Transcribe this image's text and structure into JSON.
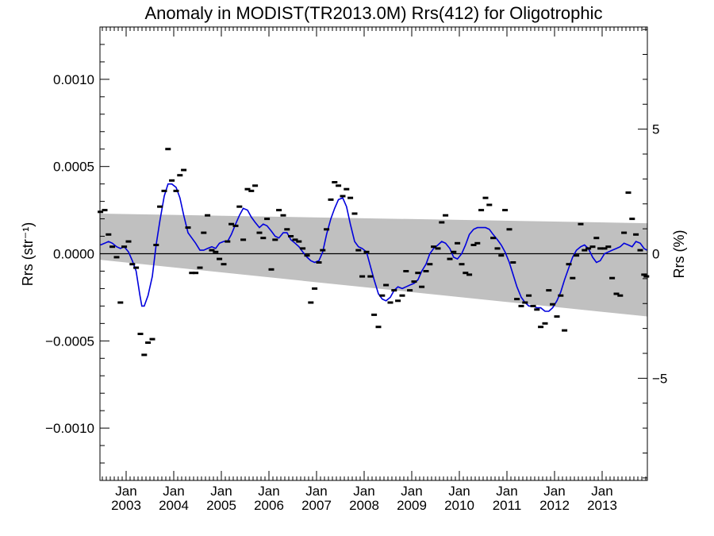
{
  "chart_data": {
    "type": "scatter",
    "title": "Anomaly in MODIST(TR2013.0M) Rrs(412) for Oligotrophic",
    "ylabel": "Rrs (str⁻¹)",
    "ylabel_right": "Rrs (%)",
    "xlim": [
      2002.45,
      2013.95
    ],
    "ylim": [
      -0.0013,
      0.0013
    ],
    "ylim_right": [
      -9.1,
      9.1
    ],
    "y_ticks": [
      {
        "v": 0.001,
        "label": "0.0010"
      },
      {
        "v": 0.0005,
        "label": "0.0005"
      },
      {
        "v": 0.0,
        "label": "0.0000"
      },
      {
        "v": -0.0005,
        "label": "−0.0005"
      },
      {
        "v": -0.001,
        "label": "−0.0010"
      }
    ],
    "y_right_ticks": [
      {
        "v": 5,
        "label": "5"
      },
      {
        "v": 0,
        "label": "0"
      },
      {
        "v": -5,
        "label": "−5"
      }
    ],
    "x_ticks": [
      {
        "x": 2003.0,
        "month": "Jan",
        "year": "2003"
      },
      {
        "x": 2004.0,
        "month": "Jan",
        "year": "2004"
      },
      {
        "x": 2005.0,
        "month": "Jan",
        "year": "2005"
      },
      {
        "x": 2006.0,
        "month": "Jan",
        "year": "2006"
      },
      {
        "x": 2007.0,
        "month": "Jan",
        "year": "2007"
      },
      {
        "x": 2008.0,
        "month": "Jan",
        "year": "2008"
      },
      {
        "x": 2009.0,
        "month": "Jan",
        "year": "2009"
      },
      {
        "x": 2010.0,
        "month": "Jan",
        "year": "2010"
      },
      {
        "x": 2011.0,
        "month": "Jan",
        "year": "2011"
      },
      {
        "x": 2012.0,
        "month": "Jan",
        "year": "2012"
      },
      {
        "x": 2013.0,
        "month": "Jan",
        "year": "2013"
      }
    ],
    "band": {
      "color": "#c0c0c0",
      "start": {
        "x": 2002.45,
        "upper": 0.00023,
        "lower": -3.5e-05
      },
      "end": {
        "x": 2013.95,
        "upper": 0.000175,
        "lower": -0.00036
      }
    },
    "zero_line": 0,
    "monthly_anomaly": {
      "color": "#000000",
      "points": [
        [
          2002.46,
          0.00024
        ],
        [
          2002.55,
          0.00025
        ],
        [
          2002.63,
          0.00011
        ],
        [
          2002.71,
          4e-05
        ],
        [
          2002.8,
          -2e-05
        ],
        [
          2002.88,
          -0.00028
        ],
        [
          2002.96,
          4e-05
        ],
        [
          2003.05,
          7e-05
        ],
        [
          2003.13,
          -6e-05
        ],
        [
          2003.21,
          -8e-05
        ],
        [
          2003.3,
          -0.00046
        ],
        [
          2003.38,
          -0.00058
        ],
        [
          2003.46,
          -0.00051
        ],
        [
          2003.55,
          -0.00049
        ],
        [
          2003.63,
          5e-05
        ],
        [
          2003.71,
          0.00027
        ],
        [
          2003.8,
          0.00036
        ],
        [
          2003.88,
          0.0006
        ],
        [
          2003.96,
          0.00042
        ],
        [
          2004.05,
          0.00036
        ],
        [
          2004.13,
          0.00045
        ],
        [
          2004.21,
          0.00048
        ],
        [
          2004.3,
          0.00015
        ],
        [
          2004.38,
          -0.00011
        ],
        [
          2004.46,
          -0.00011
        ],
        [
          2004.55,
          -8e-05
        ],
        [
          2004.63,
          0.00012
        ],
        [
          2004.71,
          0.00022
        ],
        [
          2004.8,
          2e-05
        ],
        [
          2004.88,
          1e-05
        ],
        [
          2004.96,
          -3e-05
        ],
        [
          2005.05,
          -6e-05
        ],
        [
          2005.13,
          7e-05
        ],
        [
          2005.21,
          0.00017
        ],
        [
          2005.3,
          0.00016
        ],
        [
          2005.38,
          0.00027
        ],
        [
          2005.46,
          8e-05
        ],
        [
          2005.55,
          0.00037
        ],
        [
          2005.63,
          0.00036
        ],
        [
          2005.71,
          0.00039
        ],
        [
          2005.8,
          0.00012
        ],
        [
          2005.88,
          9e-05
        ],
        [
          2005.96,
          0.0002
        ],
        [
          2006.05,
          -9e-05
        ],
        [
          2006.13,
          8e-05
        ],
        [
          2006.21,
          0.00025
        ],
        [
          2006.3,
          0.00022
        ],
        [
          2006.38,
          0.00014
        ],
        [
          2006.46,
          0.0001
        ],
        [
          2006.55,
          8e-05
        ],
        [
          2006.63,
          7e-05
        ],
        [
          2006.71,
          3e-05
        ],
        [
          2006.8,
          -1e-05
        ],
        [
          2006.88,
          -0.00028
        ],
        [
          2006.96,
          -0.0002
        ],
        [
          2007.05,
          -5e-05
        ],
        [
          2007.13,
          2e-05
        ],
        [
          2007.21,
          0.00014
        ],
        [
          2007.3,
          0.00031
        ],
        [
          2007.38,
          0.00041
        ],
        [
          2007.46,
          0.00039
        ],
        [
          2007.55,
          0.00033
        ],
        [
          2007.63,
          0.00037
        ],
        [
          2007.71,
          0.00032
        ],
        [
          2007.8,
          0.00023
        ],
        [
          2007.88,
          2e-05
        ],
        [
          2007.96,
          -0.00013
        ],
        [
          2008.05,
          1e-05
        ],
        [
          2008.13,
          -0.00013
        ],
        [
          2008.21,
          -0.00035
        ],
        [
          2008.3,
          -0.00042
        ],
        [
          2008.38,
          -0.00024
        ],
        [
          2008.46,
          -0.00018
        ],
        [
          2008.55,
          -0.00028
        ],
        [
          2008.63,
          -0.00021
        ],
        [
          2008.71,
          -0.00027
        ],
        [
          2008.8,
          -0.00024
        ],
        [
          2008.88,
          -0.0001
        ],
        [
          2008.96,
          -0.00021
        ],
        [
          2009.05,
          -0.00016
        ],
        [
          2009.13,
          -0.00011
        ],
        [
          2009.21,
          -0.00019
        ],
        [
          2009.3,
          -0.0001
        ],
        [
          2009.38,
          -6e-05
        ],
        [
          2009.46,
          4e-05
        ],
        [
          2009.55,
          3e-05
        ],
        [
          2009.63,
          0.00018
        ],
        [
          2009.71,
          0.00022
        ],
        [
          2009.8,
          -3e-05
        ],
        [
          2009.88,
          1e-05
        ],
        [
          2009.96,
          6e-05
        ],
        [
          2010.05,
          -6e-05
        ],
        [
          2010.13,
          -0.00011
        ],
        [
          2010.21,
          -0.00012
        ],
        [
          2010.3,
          5e-05
        ],
        [
          2010.38,
          6e-05
        ],
        [
          2010.46,
          0.00025
        ],
        [
          2010.55,
          0.00032
        ],
        [
          2010.63,
          0.00028
        ],
        [
          2010.71,
          9e-05
        ],
        [
          2010.8,
          3e-05
        ],
        [
          2010.88,
          -1e-05
        ],
        [
          2010.96,
          0.00025
        ],
        [
          2011.05,
          0.00014
        ],
        [
          2011.13,
          -5e-05
        ],
        [
          2011.21,
          -0.00026
        ],
        [
          2011.3,
          -0.0003
        ],
        [
          2011.38,
          -0.00028
        ],
        [
          2011.46,
          -0.00024
        ],
        [
          2011.55,
          -0.0003
        ],
        [
          2011.63,
          -0.00032
        ],
        [
          2011.71,
          -0.00042
        ],
        [
          2011.8,
          -0.0004
        ],
        [
          2011.88,
          -0.00021
        ],
        [
          2011.96,
          -0.00029
        ],
        [
          2012.05,
          -0.00036
        ],
        [
          2012.13,
          -0.00024
        ],
        [
          2012.21,
          -0.00044
        ],
        [
          2012.3,
          -6e-05
        ],
        [
          2012.38,
          -0.00014
        ],
        [
          2012.46,
          -1e-05
        ],
        [
          2012.55,
          0.00017
        ],
        [
          2012.63,
          2e-05
        ],
        [
          2012.71,
          3e-05
        ],
        [
          2012.8,
          4e-05
        ],
        [
          2012.88,
          9e-05
        ],
        [
          2012.96,
          3e-05
        ],
        [
          2013.05,
          3e-05
        ],
        [
          2013.13,
          4e-05
        ],
        [
          2013.21,
          -0.00014
        ],
        [
          2013.3,
          -0.00023
        ],
        [
          2013.38,
          -0.00024
        ],
        [
          2013.46,
          0.00012
        ],
        [
          2013.55,
          0.00035
        ],
        [
          2013.63,
          0.0002
        ],
        [
          2013.71,
          0.00011
        ],
        [
          2013.8,
          2e-05
        ],
        [
          2013.88,
          -0.00012
        ],
        [
          2013.93,
          -0.00013
        ]
      ]
    },
    "smoothed": {
      "color": "#0000dd",
      "points": [
        [
          2002.46,
          5e-05
        ],
        [
          2002.55,
          6e-05
        ],
        [
          2002.63,
          7e-05
        ],
        [
          2002.71,
          6e-05
        ],
        [
          2002.8,
          4e-05
        ],
        [
          2002.88,
          3e-05
        ],
        [
          2002.96,
          4e-05
        ],
        [
          2003.05,
          1e-05
        ],
        [
          2003.13,
          -4e-05
        ],
        [
          2003.21,
          -0.0001
        ],
        [
          2003.29,
          -0.00024
        ],
        [
          2003.33,
          -0.0003
        ],
        [
          2003.38,
          -0.0003
        ],
        [
          2003.46,
          -0.00024
        ],
        [
          2003.55,
          -0.00013
        ],
        [
          2003.63,
          5e-05
        ],
        [
          2003.71,
          0.00019
        ],
        [
          2003.8,
          0.00033
        ],
        [
          2003.88,
          0.0004
        ],
        [
          2003.96,
          0.0004
        ],
        [
          2004.05,
          0.00038
        ],
        [
          2004.13,
          0.00032
        ],
        [
          2004.21,
          0.00022
        ],
        [
          2004.3,
          0.00012
        ],
        [
          2004.38,
          9e-05
        ],
        [
          2004.46,
          6e-05
        ],
        [
          2004.55,
          2e-05
        ],
        [
          2004.63,
          2e-05
        ],
        [
          2004.71,
          3e-05
        ],
        [
          2004.8,
          4e-05
        ],
        [
          2004.88,
          3e-05
        ],
        [
          2004.96,
          6e-05
        ],
        [
          2005.05,
          7e-05
        ],
        [
          2005.13,
          7e-05
        ],
        [
          2005.21,
          0.00011
        ],
        [
          2005.3,
          0.00017
        ],
        [
          2005.38,
          0.00022
        ],
        [
          2005.46,
          0.00026
        ],
        [
          2005.55,
          0.00025
        ],
        [
          2005.63,
          0.00021
        ],
        [
          2005.71,
          0.00018
        ],
        [
          2005.8,
          0.00015
        ],
        [
          2005.88,
          0.00017
        ],
        [
          2005.96,
          0.00016
        ],
        [
          2006.05,
          0.00013
        ],
        [
          2006.13,
          0.0001
        ],
        [
          2006.21,
          9e-05
        ],
        [
          2006.3,
          0.00012
        ],
        [
          2006.38,
          0.00012
        ],
        [
          2006.46,
          8e-05
        ],
        [
          2006.55,
          6e-05
        ],
        [
          2006.63,
          4e-05
        ],
        [
          2006.71,
          1e-05
        ],
        [
          2006.8,
          -2e-05
        ],
        [
          2006.88,
          -4e-05
        ],
        [
          2006.96,
          -5e-05
        ],
        [
          2007.05,
          -4e-05
        ],
        [
          2007.13,
          1e-05
        ],
        [
          2007.21,
          0.00011
        ],
        [
          2007.3,
          0.0002
        ],
        [
          2007.38,
          0.00026
        ],
        [
          2007.46,
          0.00031
        ],
        [
          2007.55,
          0.00032
        ],
        [
          2007.63,
          0.00027
        ],
        [
          2007.71,
          0.00017
        ],
        [
          2007.8,
          7e-05
        ],
        [
          2007.88,
          4e-05
        ],
        [
          2007.96,
          3e-05
        ],
        [
          2008.05,
          1e-05
        ],
        [
          2008.13,
          -7e-05
        ],
        [
          2008.21,
          -0.00015
        ],
        [
          2008.3,
          -0.00023
        ],
        [
          2008.38,
          -0.00026
        ],
        [
          2008.46,
          -0.00027
        ],
        [
          2008.55,
          -0.00025
        ],
        [
          2008.63,
          -0.00021
        ],
        [
          2008.71,
          -0.00019
        ],
        [
          2008.8,
          -0.0002
        ],
        [
          2008.88,
          -0.00019
        ],
        [
          2008.96,
          -0.00018
        ],
        [
          2009.05,
          -0.00017
        ],
        [
          2009.13,
          -0.00015
        ],
        [
          2009.21,
          -0.0001
        ],
        [
          2009.3,
          -6e-05
        ],
        [
          2009.38,
          0.0
        ],
        [
          2009.46,
          3e-05
        ],
        [
          2009.55,
          5e-05
        ],
        [
          2009.63,
          7e-05
        ],
        [
          2009.71,
          6e-05
        ],
        [
          2009.8,
          3e-05
        ],
        [
          2009.88,
          -2e-05
        ],
        [
          2009.96,
          -3e-05
        ],
        [
          2010.05,
          0.0
        ],
        [
          2010.13,
          5e-05
        ],
        [
          2010.21,
          0.00011
        ],
        [
          2010.3,
          0.00014
        ],
        [
          2010.38,
          0.00015
        ],
        [
          2010.46,
          0.00015
        ],
        [
          2010.55,
          0.00015
        ],
        [
          2010.63,
          0.00014
        ],
        [
          2010.71,
          0.00011
        ],
        [
          2010.8,
          8e-05
        ],
        [
          2010.88,
          5e-05
        ],
        [
          2010.96,
          1e-05
        ],
        [
          2011.05,
          -5e-05
        ],
        [
          2011.13,
          -0.00012
        ],
        [
          2011.21,
          -0.00019
        ],
        [
          2011.3,
          -0.00025
        ],
        [
          2011.38,
          -0.00028
        ],
        [
          2011.46,
          -0.0003
        ],
        [
          2011.55,
          -0.0003
        ],
        [
          2011.63,
          -0.00031
        ],
        [
          2011.71,
          -0.00031
        ],
        [
          2011.8,
          -0.00033
        ],
        [
          2011.88,
          -0.00033
        ],
        [
          2011.96,
          -0.00031
        ],
        [
          2012.05,
          -0.00027
        ],
        [
          2012.13,
          -0.00022
        ],
        [
          2012.21,
          -0.00015
        ],
        [
          2012.3,
          -8e-05
        ],
        [
          2012.38,
          -2e-05
        ],
        [
          2012.46,
          2e-05
        ],
        [
          2012.55,
          4e-05
        ],
        [
          2012.63,
          5e-05
        ],
        [
          2012.71,
          3e-05
        ],
        [
          2012.8,
          -2e-05
        ],
        [
          2012.88,
          -5e-05
        ],
        [
          2012.96,
          -4e-05
        ],
        [
          2013.05,
          0.0
        ],
        [
          2013.13,
          1e-05
        ],
        [
          2013.21,
          2e-05
        ],
        [
          2013.3,
          3e-05
        ],
        [
          2013.38,
          4e-05
        ],
        [
          2013.46,
          6e-05
        ],
        [
          2013.55,
          5e-05
        ],
        [
          2013.63,
          4e-05
        ],
        [
          2013.71,
          7e-05
        ],
        [
          2013.8,
          6e-05
        ],
        [
          2013.88,
          3e-05
        ],
        [
          2013.94,
          2e-05
        ]
      ]
    }
  }
}
